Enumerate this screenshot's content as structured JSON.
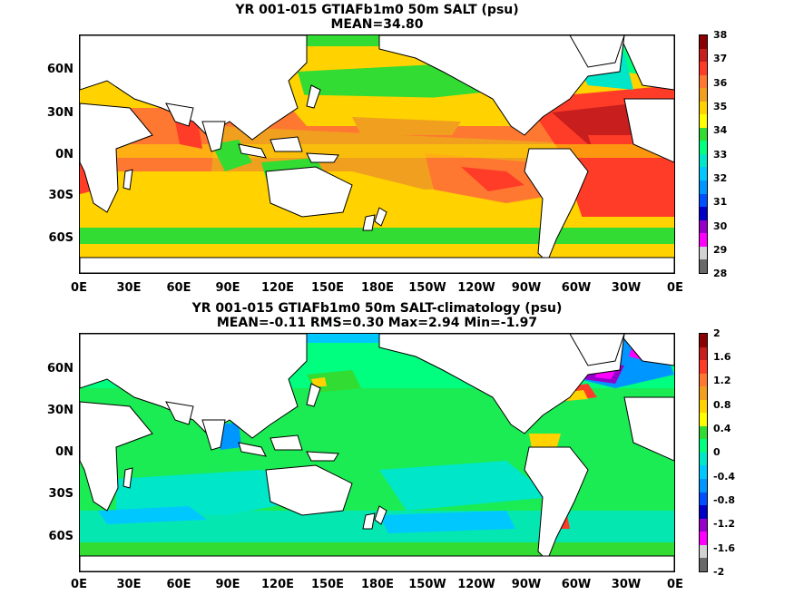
{
  "top": {
    "title_line1": "YR 001-015 GTIAFb1m0 50m SALT (psu)",
    "title_line2": "MEAN=34.80",
    "colorbar_labels": [
      "38",
      "37",
      "36",
      "35",
      "34",
      "33",
      "32",
      "31",
      "30",
      "29",
      "28"
    ],
    "colorbar_colors": [
      "#8b0000",
      "#c81e1e",
      "#ff3c28",
      "#ff7832",
      "#f0a01e",
      "#ffd200",
      "#ffff00",
      "#32dc32",
      "#00ff7f",
      "#00e6c8",
      "#00c8ff",
      "#0096ff",
      "#0050ff",
      "#0000c8",
      "#9600c8",
      "#ff00ff",
      "#d2d2d2",
      "#696969"
    ]
  },
  "bottom": {
    "title_line1": "YR 001-015 GTIAFb1m0 50m SALT-climatology (psu)",
    "title_line2": "MEAN=-0.11   RMS=0.30   Max=2.94   Min=-1.97",
    "colorbar_labels": [
      "2",
      "1.6",
      "1.2",
      "0.8",
      "0.4",
      "0",
      "-0.4",
      "-0.8",
      "-1.2",
      "-1.6",
      "-2"
    ],
    "colorbar_colors": [
      "#8b0000",
      "#c81e1e",
      "#ff3c28",
      "#ff7832",
      "#f0a01e",
      "#ffd200",
      "#ffff00",
      "#32dc32",
      "#00ff7f",
      "#00e6c8",
      "#00c8ff",
      "#0096ff",
      "#0050ff",
      "#0000c8",
      "#9600c8",
      "#ff00ff",
      "#d2d2d2",
      "#696969"
    ]
  },
  "lat_labels": [
    "60N",
    "30N",
    "0N",
    "30S",
    "60S"
  ],
  "lon_labels": [
    "0E",
    "30E",
    "60E",
    "90E",
    "120E",
    "150E",
    "180E",
    "150W",
    "120W",
    "90W",
    "60W",
    "30W",
    "0E"
  ],
  "colors": {
    "land": "#ffffff",
    "coast": "#000000"
  }
}
